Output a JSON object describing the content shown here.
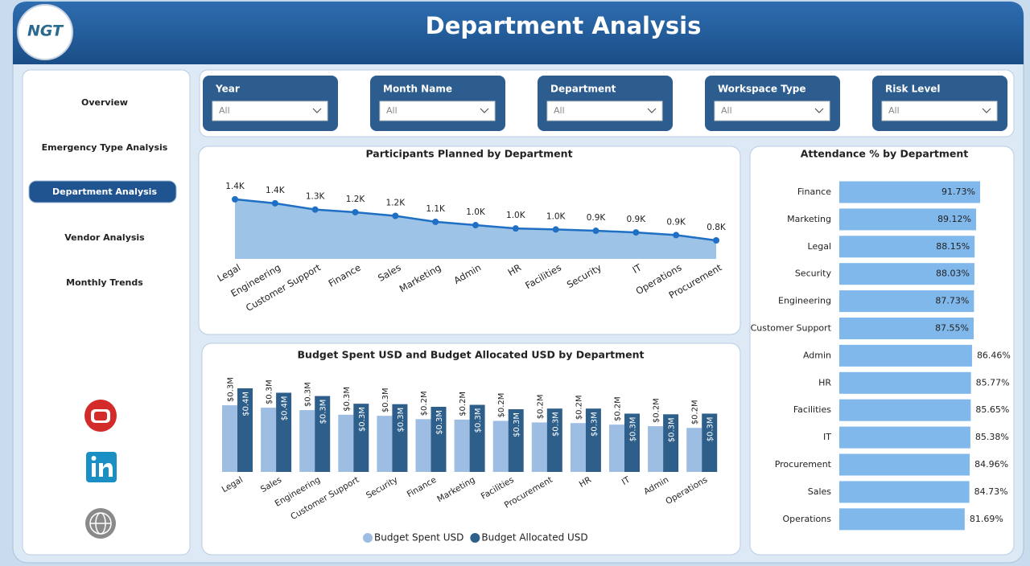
{
  "header": {
    "title": "Department Analysis",
    "logo": "NGT"
  },
  "nav": {
    "items": [
      "Overview",
      "Emergency Type Analysis",
      "Department Analysis",
      "Vendor Analysis",
      "Monthly Trends"
    ]
  },
  "filters": [
    {
      "label": "Year",
      "value": "All"
    },
    {
      "label": "Month Name",
      "value": "All"
    },
    {
      "label": "Department",
      "value": "All"
    },
    {
      "label": "Workspace Type",
      "value": "All"
    },
    {
      "label": "Risk Level",
      "value": "All"
    }
  ],
  "chart_data": [
    {
      "type": "area",
      "title": "Participants Planned by Department",
      "categories": [
        "Legal",
        "Engineering",
        "Customer Support",
        "Finance",
        "Sales",
        "Marketing",
        "Admin",
        "HR",
        "Facilities",
        "Security",
        "IT",
        "Operations",
        "Procurement"
      ],
      "values": [
        1420,
        1360,
        1265,
        1225,
        1170,
        1080,
        1030,
        980,
        965,
        945,
        920,
        880,
        800
      ],
      "value_labels": [
        "1.4K",
        "1.4K",
        "1.3K",
        "1.2K",
        "1.2K",
        "1.1K",
        "1.0K",
        "1.0K",
        "1.0K",
        "0.9K",
        "0.9K",
        "0.9K",
        "0.8K"
      ],
      "color": "#1f6fc4",
      "fill": "#9dc3e6"
    },
    {
      "type": "grouped_bar",
      "title": "Budget Spent USD and Budget Allocated USD by Department",
      "categories": [
        "Legal",
        "Sales",
        "Engineering",
        "Customer Support",
        "Security",
        "Finance",
        "Marketing",
        "Facilities",
        "Procurement",
        "HR",
        "IT",
        "Admin",
        "Operations"
      ],
      "series": [
        {
          "name": "Budget Spent USD",
          "color": "#9dbde3",
          "values": [
            303000,
            292000,
            281000,
            260000,
            255000,
            240000,
            238000,
            232000,
            225000,
            222000,
            215000,
            208000,
            200000
          ],
          "value_labels": [
            "$0.3M",
            "$0.3M",
            "$0.3M",
            "$0.3M",
            "$0.3M",
            "$0.2M",
            "$0.2M",
            "$0.2M",
            "$0.2M",
            "$0.2M",
            "$0.2M",
            "$0.2M",
            "$0.2M"
          ]
        },
        {
          "name": "Budget Allocated USD",
          "color": "#2e5f8a",
          "values": [
            380000,
            360000,
            345000,
            310000,
            308000,
            296000,
            305000,
            285000,
            288000,
            288000,
            265000,
            262000,
            265000
          ],
          "value_labels": [
            "$0.4M",
            "$0.4M",
            "$0.3M",
            "$0.3M",
            "$0.3M",
            "$0.3M",
            "$0.3M",
            "$0.3M",
            "$0.3M",
            "$0.3M",
            "$0.3M",
            "$0.3M",
            "$0.3M"
          ]
        }
      ],
      "legend": "bottom"
    },
    {
      "type": "hbar",
      "title": "Attendance % by Department",
      "categories": [
        "Finance",
        "Marketing",
        "Legal",
        "Security",
        "Engineering",
        "Customer Support",
        "Admin",
        "HR",
        "Facilities",
        "IT",
        "Procurement",
        "Sales",
        "Operations"
      ],
      "values": [
        91.73,
        89.12,
        88.15,
        88.03,
        87.73,
        87.55,
        86.46,
        85.77,
        85.65,
        85.38,
        84.96,
        84.73,
        81.69
      ],
      "value_labels": [
        "91.73%",
        "89.12%",
        "88.15%",
        "88.03%",
        "87.73%",
        "87.55%",
        "86.46%",
        "85.77%",
        "85.65%",
        "85.38%",
        "84.96%",
        "84.73%",
        "81.69%"
      ],
      "color": "#80b8ec"
    }
  ]
}
